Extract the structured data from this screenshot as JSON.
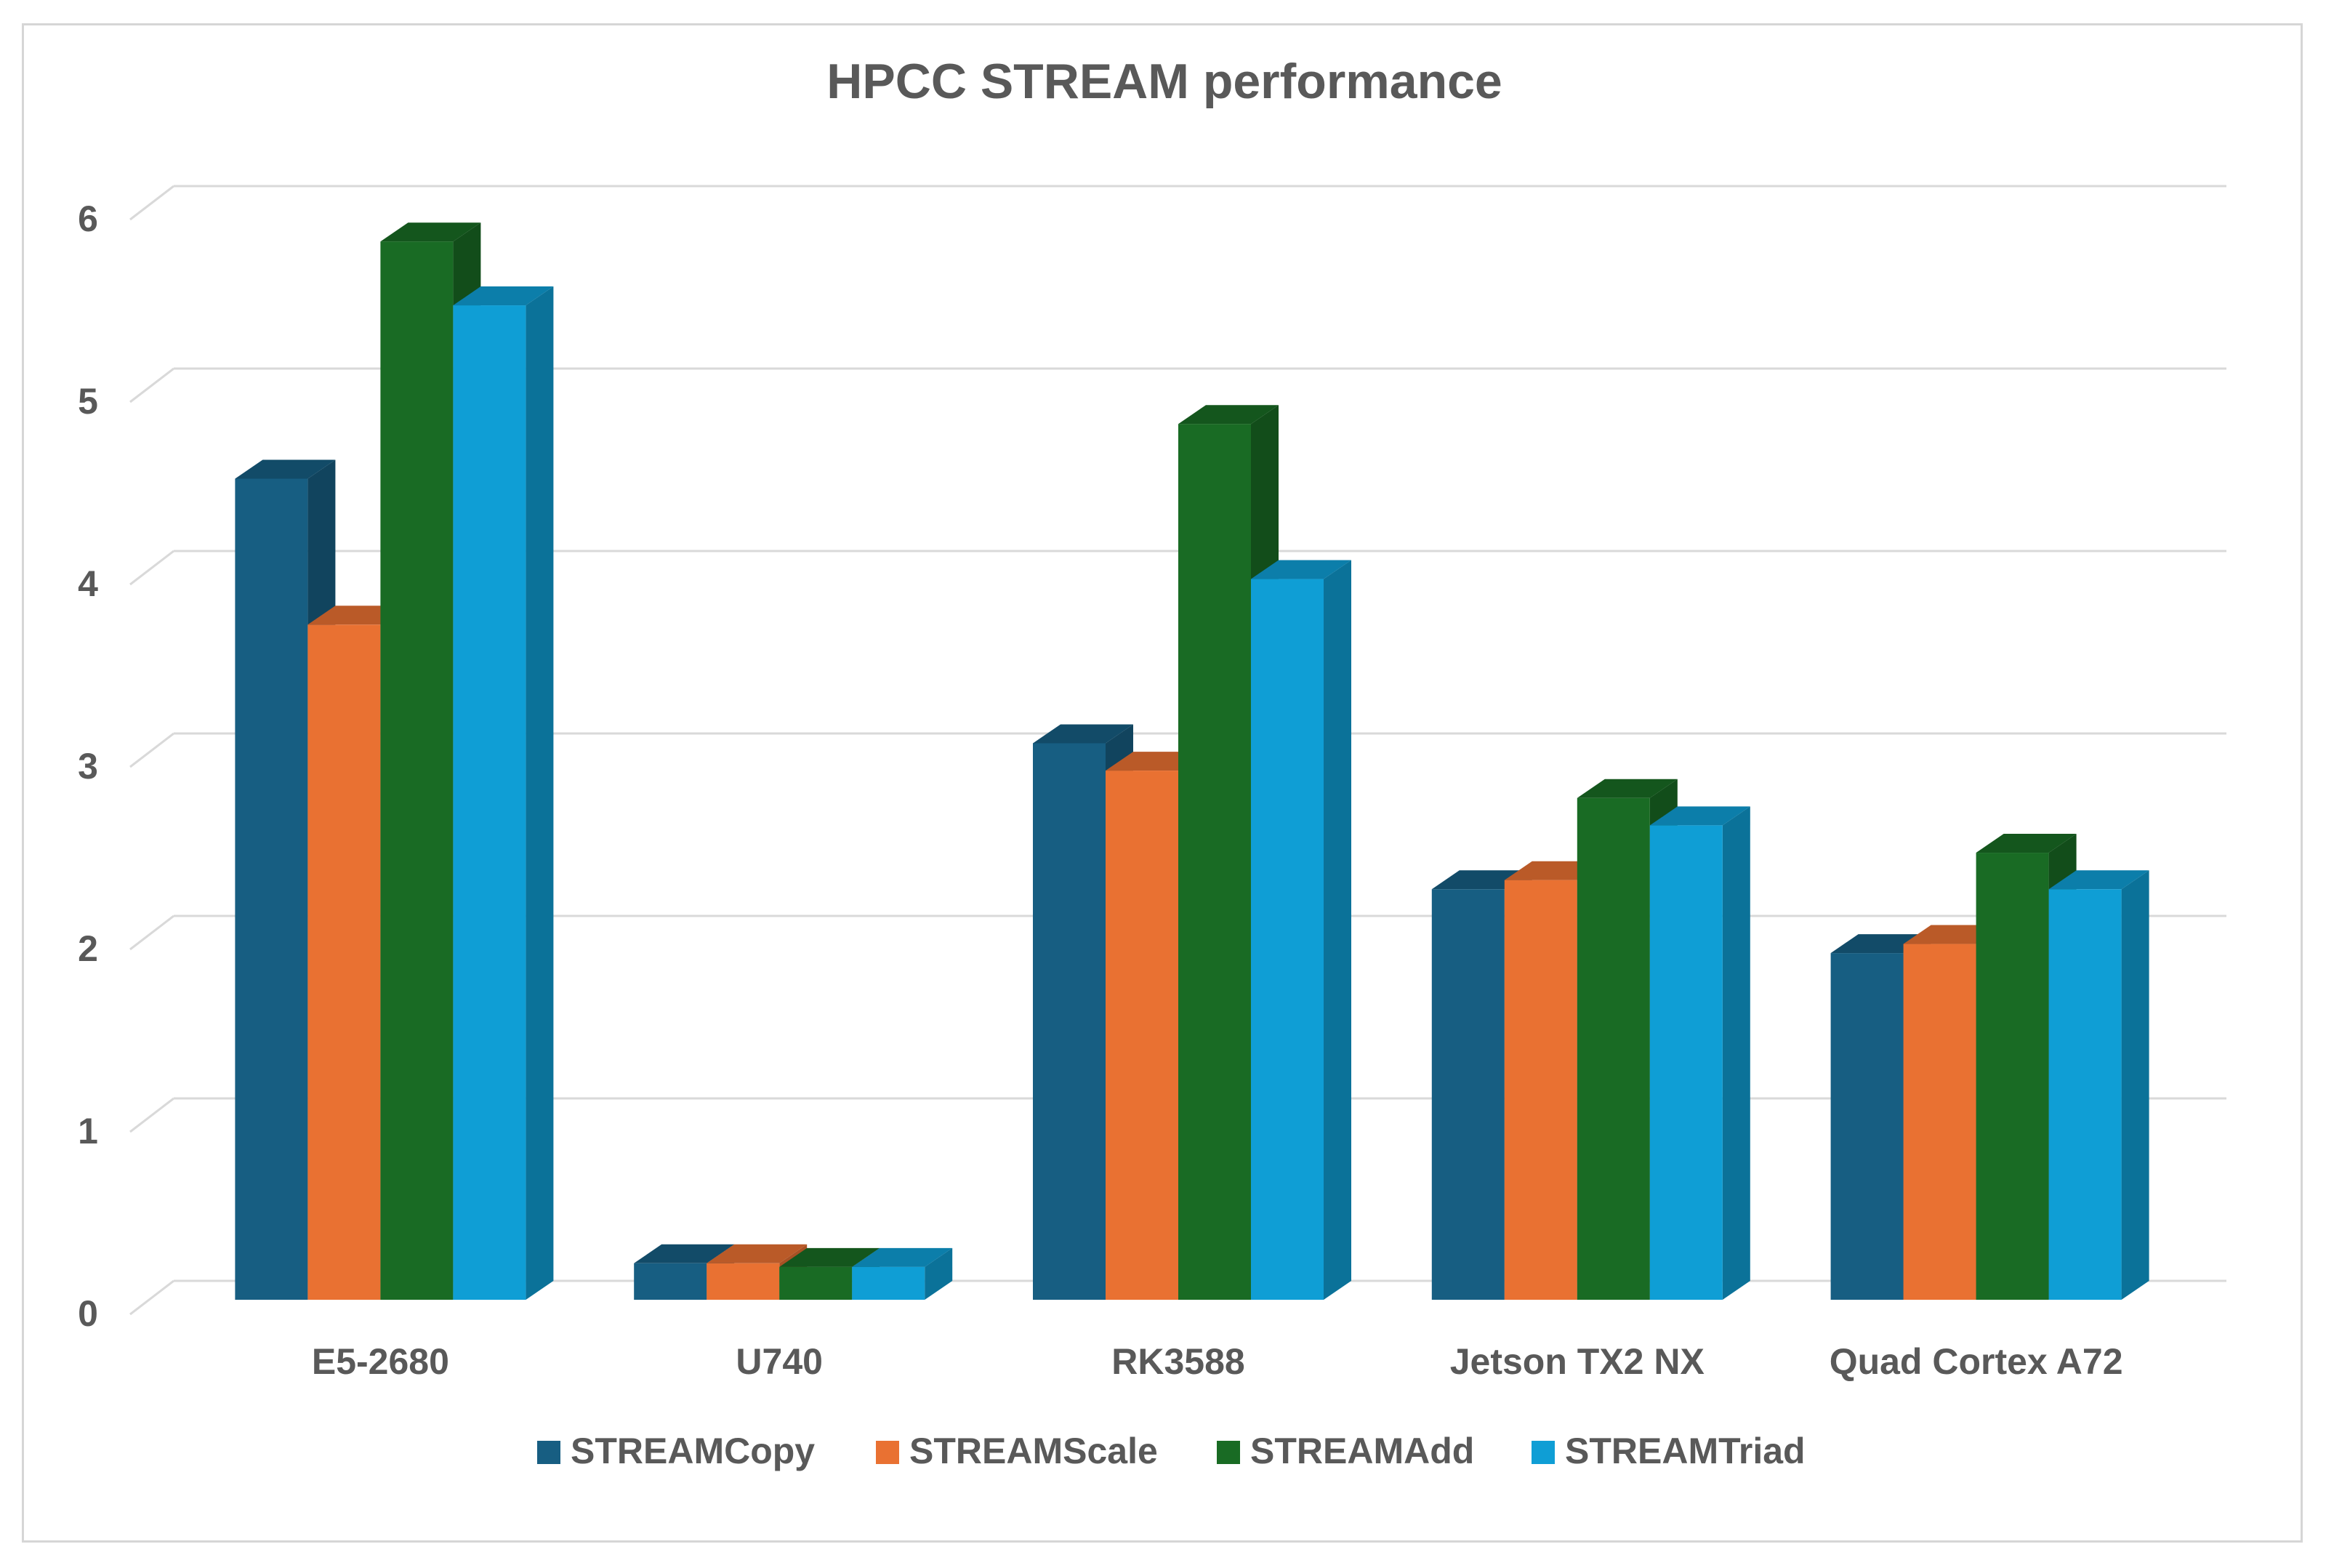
{
  "chart_data": {
    "type": "bar",
    "title": "HPCC STREAM performance",
    "xlabel": "",
    "ylabel": "",
    "ylim": [
      0,
      6
    ],
    "yticks": [
      "0",
      "1",
      "2",
      "3",
      "4",
      "5",
      "6"
    ],
    "categories": [
      "E5-2680",
      "U740",
      "RK3588",
      "Jetson TX2 NX",
      "Quad Cortex A72"
    ],
    "series": [
      {
        "name": "STREAMCopy",
        "color": "#175e82",
        "values": [
          4.5,
          0.2,
          3.05,
          2.25,
          1.9
        ]
      },
      {
        "name": "STREAMScale",
        "color": "#e97132",
        "values": [
          3.7,
          0.2,
          2.9,
          2.3,
          1.95
        ]
      },
      {
        "name": "STREAMAdd",
        "color": "#196b24",
        "values": [
          5.8,
          0.18,
          4.8,
          2.75,
          2.45
        ]
      },
      {
        "name": "STREAMTriad",
        "color": "#0f9ed5",
        "values": [
          5.45,
          0.18,
          3.95,
          2.6,
          2.25
        ]
      }
    ],
    "grid": true,
    "legend": "bottom",
    "style": "3d-clustered-column"
  }
}
